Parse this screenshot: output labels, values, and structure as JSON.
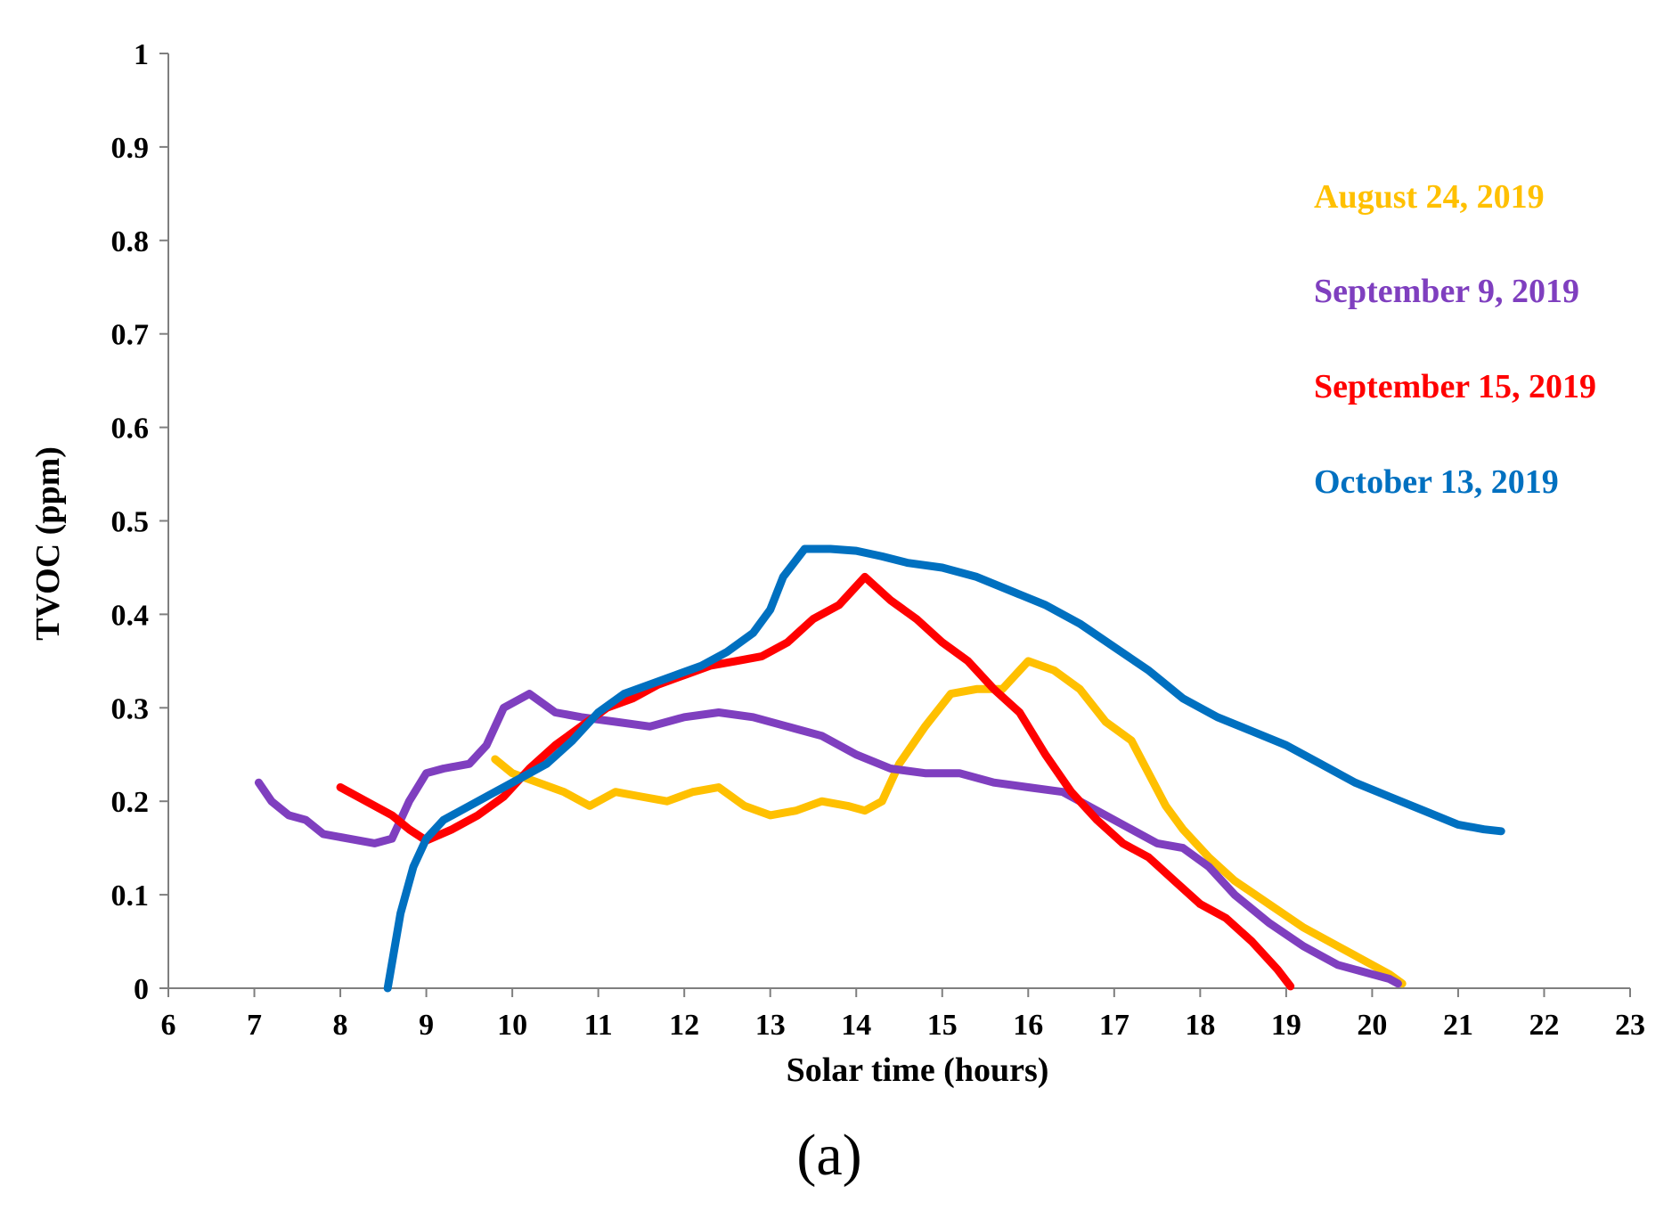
{
  "chart_data": {
    "type": "line",
    "title": "",
    "xlabel": "Solar time (hours)",
    "ylabel": "TVOC (ppm)",
    "xlim": [
      6,
      23
    ],
    "ylim": [
      0,
      1
    ],
    "x_ticks": [
      "6",
      "7",
      "8",
      "9",
      "10",
      "11",
      "12",
      "13",
      "14",
      "15",
      "16",
      "17",
      "18",
      "19",
      "20",
      "21",
      "22",
      "23"
    ],
    "y_ticks": [
      "0",
      "0.1",
      "0.2",
      "0.3",
      "0.4",
      "0.5",
      "0.6",
      "0.7",
      "0.8",
      "0.9",
      "1"
    ],
    "grid": false,
    "legend_position": "right",
    "panel_label": "(a)",
    "series": [
      {
        "name": "August 24, 2019",
        "color": "#FFC000",
        "points": [
          [
            9.8,
            0.245
          ],
          [
            10.0,
            0.23
          ],
          [
            10.3,
            0.22
          ],
          [
            10.6,
            0.21
          ],
          [
            10.9,
            0.195
          ],
          [
            11.2,
            0.21
          ],
          [
            11.5,
            0.205
          ],
          [
            11.8,
            0.2
          ],
          [
            12.1,
            0.21
          ],
          [
            12.4,
            0.215
          ],
          [
            12.7,
            0.195
          ],
          [
            13.0,
            0.185
          ],
          [
            13.3,
            0.19
          ],
          [
            13.6,
            0.2
          ],
          [
            13.9,
            0.195
          ],
          [
            14.1,
            0.19
          ],
          [
            14.3,
            0.2
          ],
          [
            14.5,
            0.24
          ],
          [
            14.8,
            0.28
          ],
          [
            15.1,
            0.315
          ],
          [
            15.4,
            0.32
          ],
          [
            15.7,
            0.32
          ],
          [
            16.0,
            0.35
          ],
          [
            16.3,
            0.34
          ],
          [
            16.6,
            0.32
          ],
          [
            16.9,
            0.285
          ],
          [
            17.2,
            0.265
          ],
          [
            17.4,
            0.23
          ],
          [
            17.6,
            0.195
          ],
          [
            17.8,
            0.17
          ],
          [
            18.1,
            0.14
          ],
          [
            18.4,
            0.115
          ],
          [
            18.8,
            0.09
          ],
          [
            19.2,
            0.065
          ],
          [
            19.6,
            0.045
          ],
          [
            20.0,
            0.025
          ],
          [
            20.2,
            0.015
          ],
          [
            20.35,
            0.005
          ]
        ]
      },
      {
        "name": "September 9, 2019",
        "color": "#7F3FBF",
        "points": [
          [
            7.05,
            0.22
          ],
          [
            7.2,
            0.2
          ],
          [
            7.4,
            0.185
          ],
          [
            7.6,
            0.18
          ],
          [
            7.8,
            0.165
          ],
          [
            8.1,
            0.16
          ],
          [
            8.4,
            0.155
          ],
          [
            8.6,
            0.16
          ],
          [
            8.8,
            0.2
          ],
          [
            9.0,
            0.23
          ],
          [
            9.2,
            0.235
          ],
          [
            9.5,
            0.24
          ],
          [
            9.7,
            0.26
          ],
          [
            9.9,
            0.3
          ],
          [
            10.2,
            0.315
          ],
          [
            10.5,
            0.295
          ],
          [
            10.8,
            0.29
          ],
          [
            11.2,
            0.285
          ],
          [
            11.6,
            0.28
          ],
          [
            12.0,
            0.29
          ],
          [
            12.4,
            0.295
          ],
          [
            12.8,
            0.29
          ],
          [
            13.2,
            0.28
          ],
          [
            13.6,
            0.27
          ],
          [
            14.0,
            0.25
          ],
          [
            14.4,
            0.235
          ],
          [
            14.8,
            0.23
          ],
          [
            15.2,
            0.23
          ],
          [
            15.6,
            0.22
          ],
          [
            16.0,
            0.215
          ],
          [
            16.4,
            0.21
          ],
          [
            16.8,
            0.19
          ],
          [
            17.2,
            0.17
          ],
          [
            17.5,
            0.155
          ],
          [
            17.8,
            0.15
          ],
          [
            18.1,
            0.13
          ],
          [
            18.4,
            0.1
          ],
          [
            18.8,
            0.07
          ],
          [
            19.2,
            0.045
          ],
          [
            19.6,
            0.025
          ],
          [
            20.0,
            0.015
          ],
          [
            20.2,
            0.01
          ],
          [
            20.3,
            0.005
          ]
        ]
      },
      {
        "name": "September 15, 2019",
        "color": "#FF0000",
        "points": [
          [
            8.0,
            0.215
          ],
          [
            8.3,
            0.2
          ],
          [
            8.6,
            0.185
          ],
          [
            8.8,
            0.17
          ],
          [
            9.0,
            0.158
          ],
          [
            9.3,
            0.17
          ],
          [
            9.6,
            0.185
          ],
          [
            9.9,
            0.205
          ],
          [
            10.2,
            0.235
          ],
          [
            10.5,
            0.26
          ],
          [
            10.8,
            0.28
          ],
          [
            11.1,
            0.3
          ],
          [
            11.4,
            0.31
          ],
          [
            11.7,
            0.325
          ],
          [
            12.0,
            0.335
          ],
          [
            12.3,
            0.345
          ],
          [
            12.6,
            0.35
          ],
          [
            12.9,
            0.355
          ],
          [
            13.2,
            0.37
          ],
          [
            13.5,
            0.395
          ],
          [
            13.8,
            0.41
          ],
          [
            14.1,
            0.44
          ],
          [
            14.4,
            0.415
          ],
          [
            14.7,
            0.395
          ],
          [
            15.0,
            0.37
          ],
          [
            15.3,
            0.35
          ],
          [
            15.6,
            0.32
          ],
          [
            15.9,
            0.295
          ],
          [
            16.2,
            0.25
          ],
          [
            16.5,
            0.21
          ],
          [
            16.8,
            0.18
          ],
          [
            17.1,
            0.155
          ],
          [
            17.4,
            0.14
          ],
          [
            17.7,
            0.115
          ],
          [
            18.0,
            0.09
          ],
          [
            18.3,
            0.075
          ],
          [
            18.6,
            0.05
          ],
          [
            18.9,
            0.02
          ],
          [
            19.05,
            0.002
          ]
        ]
      },
      {
        "name": "October 13, 2019",
        "color": "#0070C0",
        "points": [
          [
            8.55,
            0.0
          ],
          [
            8.7,
            0.08
          ],
          [
            8.85,
            0.13
          ],
          [
            9.0,
            0.16
          ],
          [
            9.2,
            0.18
          ],
          [
            9.5,
            0.195
          ],
          [
            9.8,
            0.21
          ],
          [
            10.1,
            0.225
          ],
          [
            10.4,
            0.24
          ],
          [
            10.7,
            0.265
          ],
          [
            11.0,
            0.295
          ],
          [
            11.3,
            0.315
          ],
          [
            11.6,
            0.325
          ],
          [
            11.9,
            0.335
          ],
          [
            12.2,
            0.345
          ],
          [
            12.5,
            0.36
          ],
          [
            12.8,
            0.38
          ],
          [
            13.0,
            0.405
          ],
          [
            13.15,
            0.44
          ],
          [
            13.4,
            0.47
          ],
          [
            13.7,
            0.47
          ],
          [
            14.0,
            0.468
          ],
          [
            14.3,
            0.462
          ],
          [
            14.6,
            0.455
          ],
          [
            15.0,
            0.45
          ],
          [
            15.4,
            0.44
          ],
          [
            15.8,
            0.425
          ],
          [
            16.2,
            0.41
          ],
          [
            16.6,
            0.39
          ],
          [
            17.0,
            0.365
          ],
          [
            17.4,
            0.34
          ],
          [
            17.8,
            0.31
          ],
          [
            18.2,
            0.29
          ],
          [
            18.6,
            0.275
          ],
          [
            19.0,
            0.26
          ],
          [
            19.4,
            0.24
          ],
          [
            19.8,
            0.22
          ],
          [
            20.2,
            0.205
          ],
          [
            20.6,
            0.19
          ],
          [
            21.0,
            0.175
          ],
          [
            21.3,
            0.17
          ],
          [
            21.5,
            0.168
          ]
        ]
      }
    ]
  }
}
